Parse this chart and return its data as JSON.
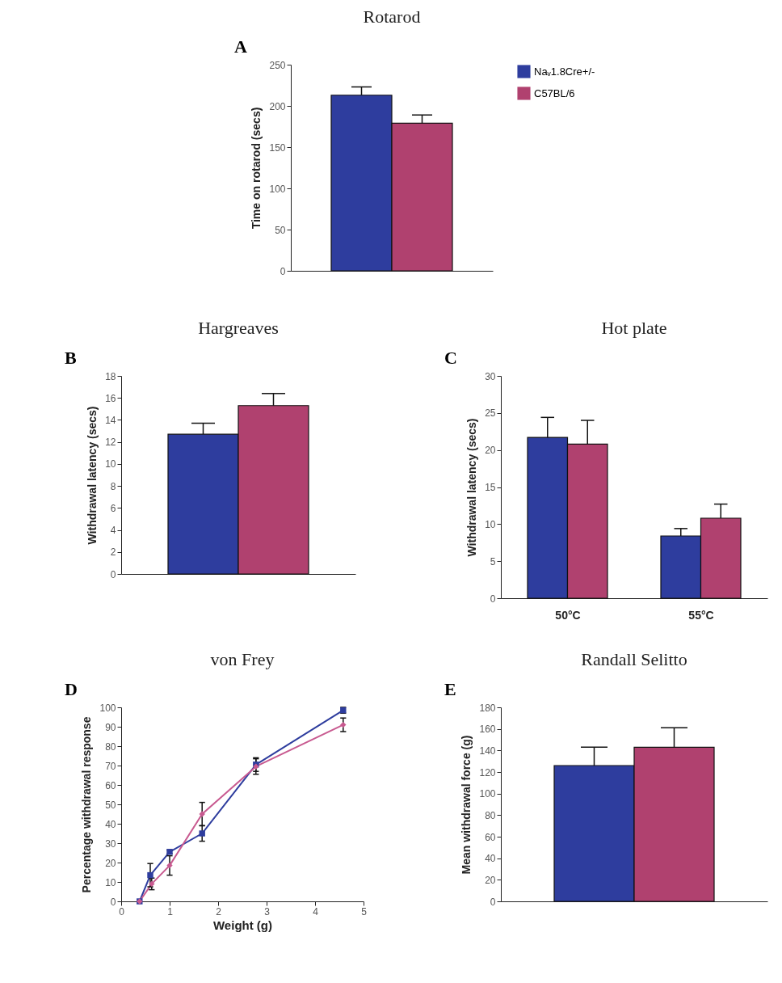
{
  "chart_data": [
    {
      "type": "bar",
      "title": "Rotarod",
      "annotations": [
        "A"
      ],
      "ylabel": "Time on rotarod (secs)",
      "categories": [
        null
      ],
      "ylim": [
        0,
        250
      ],
      "yticks": [
        0,
        50,
        100,
        150,
        200,
        250
      ],
      "tick_labels": "y",
      "legend": "right",
      "grid": false,
      "series": [
        {
          "name": "Naᵥ1.8Cre+/-",
          "color": "#2e3d9e",
          "values": [
            213
          ],
          "errors": [
            [
              213,
              223
            ]
          ]
        },
        {
          "name": "C57BL/6",
          "color": "#b0416f",
          "values": [
            179
          ],
          "errors": [
            [
              179,
              189
            ]
          ]
        }
      ]
    },
    {
      "type": "bar",
      "title": "Hargreaves",
      "annotations": [
        "B"
      ],
      "ylabel": "Withdrawal latency (secs)",
      "categories": [
        null
      ],
      "ylim": [
        0,
        18
      ],
      "yticks": [
        0,
        2,
        4,
        6,
        8,
        10,
        12,
        14,
        16,
        18
      ],
      "tick_labels": "y",
      "grid": false,
      "series": [
        {
          "color": "#2e3d9e",
          "values": [
            12.7
          ],
          "errors": [
            [
              12.7,
              13.7
            ]
          ]
        },
        {
          "color": "#b0416f",
          "values": [
            15.3
          ],
          "errors": [
            [
              15.3,
              16.4
            ]
          ]
        }
      ]
    },
    {
      "type": "bar",
      "title": "Hot plate",
      "annotations": [
        "C"
      ],
      "ylabel": "Withdrawal latency (secs)",
      "categories": [
        "50°C",
        "55°C"
      ],
      "ylim": [
        0,
        30
      ],
      "yticks": [
        0,
        5,
        10,
        15,
        20,
        25,
        30
      ],
      "grid": false,
      "series": [
        {
          "color": "#2e3d9e",
          "values": [
            21.7,
            8.4
          ],
          "errors": [
            [
              21.7,
              24.4
            ],
            [
              8.4,
              9.4
            ]
          ]
        },
        {
          "color": "#b0416f",
          "values": [
            20.8,
            10.8
          ],
          "errors": [
            [
              20.8,
              24.0
            ],
            [
              10.8,
              12.7
            ]
          ]
        }
      ]
    },
    {
      "type": "line",
      "title": "von Frey",
      "annotations": [
        "D"
      ],
      "xlabel": "Weight (g)",
      "ylabel": "Percentage withdrawal response",
      "xlim": [
        0,
        5
      ],
      "xticks": [
        0,
        1,
        2,
        3,
        4,
        5
      ],
      "ylim": [
        0,
        100
      ],
      "yticks": [
        0,
        10,
        20,
        30,
        40,
        50,
        60,
        70,
        80,
        90,
        100
      ],
      "grid": false,
      "line_style": "solid",
      "series": [
        {
          "color": "#2e3d9e",
          "marker": "square",
          "x": [
            0.38,
            0.6,
            1.0,
            1.67,
            2.78,
            4.58
          ],
          "values": [
            0,
            13.5,
            25.5,
            35,
            70.5,
            98.5
          ],
          "errors": [
            null,
            6,
            1,
            4,
            3.5,
            1.5
          ]
        },
        {
          "color": "#c85a90",
          "marker": "diamond",
          "x": [
            0.38,
            0.63,
            1.0,
            1.67,
            2.78,
            4.58
          ],
          "values": [
            0,
            9,
            18.5,
            45,
            69.5,
            91
          ],
          "errors": [
            null,
            3,
            5,
            6,
            4,
            3.5
          ]
        }
      ]
    },
    {
      "type": "bar",
      "title": "Randall Selitto",
      "annotations": [
        "E"
      ],
      "ylabel": "Mean withdrawal force (g)",
      "categories": [
        null
      ],
      "ylim": [
        0,
        180
      ],
      "yticks": [
        0,
        20,
        40,
        60,
        80,
        100,
        120,
        140,
        160,
        180
      ],
      "tick_labels": "y",
      "grid": false,
      "series": [
        {
          "color": "#2e3d9e",
          "values": [
            126
          ],
          "errors": [
            [
              126,
              143
            ]
          ]
        },
        {
          "color": "#b0416f",
          "values": [
            143
          ],
          "errors": [
            [
              143,
              161
            ]
          ]
        }
      ]
    }
  ]
}
